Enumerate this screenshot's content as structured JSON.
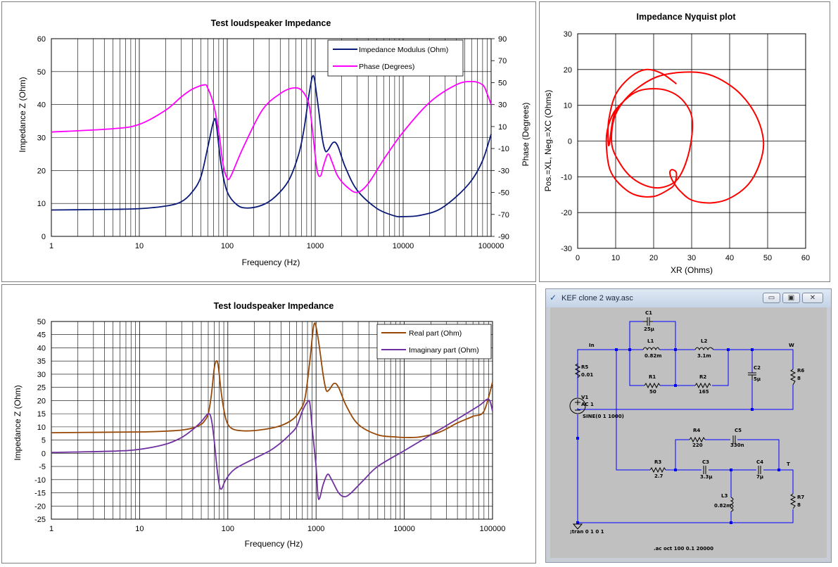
{
  "colors": {
    "navy": "#0a1a78",
    "magenta": "#ff00ff",
    "brown": "#974806",
    "purple": "#7030a0",
    "red": "#ff0000",
    "wire": "#0000ff"
  },
  "chart_data": [
    {
      "type": "line",
      "title": "Test loudspeaker Impedance",
      "xlabel": "Frequency (Hz)",
      "ylabel": "Impedance Z (Ohm)",
      "y2label": "Phase (Degrees)",
      "xscale": "log",
      "xlim": [
        1,
        100000
      ],
      "ylim": [
        0,
        60
      ],
      "y2lim": [
        -90,
        90
      ],
      "xticks": [
        "1",
        "10",
        "100",
        "1000",
        "10000",
        "100000"
      ],
      "yticks": [
        "0",
        "10",
        "20",
        "30",
        "40",
        "50",
        "60"
      ],
      "y2ticks": [
        "-90",
        "-70",
        "-50",
        "-30",
        "-10",
        "10",
        "30",
        "50",
        "70",
        "90"
      ],
      "legend_position": "top-right",
      "series": [
        {
          "name": "Impedance Modulus (Ohm)",
          "axis": "left",
          "color": "#0a1a78",
          "points": [
            [
              1,
              8
            ],
            [
              5,
              8.2
            ],
            [
              10,
              8.4
            ],
            [
              20,
              9.2
            ],
            [
              30,
              10.5
            ],
            [
              40,
              13.5
            ],
            [
              50,
              18
            ],
            [
              60,
              27
            ],
            [
              70,
              35
            ],
            [
              75,
              34
            ],
            [
              85,
              22
            ],
            [
              100,
              13.5
            ],
            [
              130,
              9.5
            ],
            [
              170,
              8.6
            ],
            [
              250,
              9.5
            ],
            [
              350,
              12
            ],
            [
              500,
              17
            ],
            [
              650,
              25
            ],
            [
              750,
              33
            ],
            [
              850,
              43
            ],
            [
              950,
              48.8
            ],
            [
              1050,
              42
            ],
            [
              1200,
              30
            ],
            [
              1300,
              26
            ],
            [
              1400,
              26.2
            ],
            [
              1600,
              28.5
            ],
            [
              1800,
              27.5
            ],
            [
              2200,
              21
            ],
            [
              3000,
              14
            ],
            [
              5000,
              8.5
            ],
            [
              8000,
              6.2
            ],
            [
              10000,
              6
            ],
            [
              15000,
              6.3
            ],
            [
              25000,
              8
            ],
            [
              40000,
              12
            ],
            [
              60000,
              17
            ],
            [
              80000,
              23
            ],
            [
              100000,
              31
            ]
          ]
        },
        {
          "name": "Phase (Degrees)",
          "axis": "right",
          "color": "#ff00ff",
          "points": [
            [
              1,
              5
            ],
            [
              5,
              8
            ],
            [
              10,
              12
            ],
            [
              20,
              25
            ],
            [
              30,
              37
            ],
            [
              40,
              44
            ],
            [
              55,
              48
            ],
            [
              60,
              45
            ],
            [
              70,
              30
            ],
            [
              80,
              5
            ],
            [
              90,
              -25
            ],
            [
              100,
              -37
            ],
            [
              110,
              -35
            ],
            [
              150,
              -10
            ],
            [
              250,
              25
            ],
            [
              400,
              40
            ],
            [
              550,
              45
            ],
            [
              700,
              43
            ],
            [
              850,
              30
            ],
            [
              950,
              0
            ],
            [
              1050,
              -30
            ],
            [
              1150,
              -35
            ],
            [
              1250,
              -25
            ],
            [
              1400,
              -15
            ],
            [
              1550,
              -22
            ],
            [
              1800,
              -35
            ],
            [
              2300,
              -45
            ],
            [
              3000,
              -50
            ],
            [
              4000,
              -42
            ],
            [
              6000,
              -20
            ],
            [
              10000,
              5
            ],
            [
              20000,
              32
            ],
            [
              40000,
              48
            ],
            [
              60000,
              51
            ],
            [
              80000,
              48
            ],
            [
              90000,
              40
            ],
            [
              100000,
              30
            ]
          ]
        }
      ]
    },
    {
      "type": "scatter",
      "title": "Impedance Nyquist plot",
      "xlabel": "XR (Ohms)",
      "ylabel": "Pos.=XL, Neg.=XC (Ohms)",
      "xlim": [
        0,
        60
      ],
      "ylim": [
        -30,
        30
      ],
      "xticks": [
        "0",
        "10",
        "20",
        "30",
        "40",
        "50",
        "60"
      ],
      "yticks": [
        "-30",
        "-20",
        "-10",
        "0",
        "10",
        "20",
        "30"
      ],
      "series": [
        {
          "color": "#ff0000",
          "points": [
            [
              26,
              16
            ],
            [
              22,
              19
            ],
            [
              18,
              20
            ],
            [
              14,
              18
            ],
            [
              10,
              13
            ],
            [
              8.2,
              6
            ],
            [
              8,
              1
            ],
            [
              8.3,
              -1
            ],
            [
              9.5,
              7
            ],
            [
              12,
              11
            ],
            [
              16,
              14
            ],
            [
              21,
              14.6
            ],
            [
              25,
              13.5
            ],
            [
              28,
              11
            ],
            [
              30,
              7
            ],
            [
              30,
              1
            ],
            [
              28.5,
              -6
            ],
            [
              26,
              -11
            ],
            [
              22,
              -13
            ],
            [
              18,
              -12.5
            ],
            [
              14,
              -10
            ],
            [
              11,
              -6
            ],
            [
              9,
              -1
            ],
            [
              9.5,
              6
            ],
            [
              12,
              11
            ],
            [
              16,
              15
            ],
            [
              21,
              18
            ],
            [
              27,
              19.2
            ],
            [
              33,
              19
            ],
            [
              38,
              17
            ],
            [
              43,
              13
            ],
            [
              47,
              7
            ],
            [
              48.9,
              0
            ],
            [
              48,
              -6
            ],
            [
              45,
              -12
            ],
            [
              40,
              -16
            ],
            [
              35,
              -17.3
            ],
            [
              30,
              -16.5
            ],
            [
              27,
              -14
            ],
            [
              25.5,
              -12
            ],
            [
              24.5,
              -10
            ],
            [
              24.3,
              -8.5
            ],
            [
              25,
              -8
            ],
            [
              26,
              -9
            ],
            [
              25.5,
              -12
            ],
            [
              24,
              -13.5
            ],
            [
              20,
              -15.5
            ],
            [
              15,
              -15
            ],
            [
              11,
              -12
            ],
            [
              8.5,
              -8
            ],
            [
              7.6,
              -2
            ],
            [
              7.8,
              3
            ],
            [
              9.5,
              8
            ],
            [
              12,
              11
            ]
          ]
        }
      ]
    },
    {
      "type": "line",
      "title": "Test loudspeaker Impedance",
      "xlabel": "Frequency (Hz)",
      "ylabel": "Impedance Z (Ohm)",
      "xscale": "log",
      "xlim": [
        1,
        100000
      ],
      "ylim": [
        -25,
        50
      ],
      "xticks": [
        "1",
        "10",
        "100",
        "1000",
        "10000",
        "100000"
      ],
      "yticks": [
        "-25",
        "-20",
        "-15",
        "-10",
        "-5",
        "0",
        "5",
        "10",
        "15",
        "20",
        "25",
        "30",
        "35",
        "40",
        "45",
        "50"
      ],
      "legend_position": "top-right",
      "series": [
        {
          "name": "Real part (Ohm)",
          "color": "#974806",
          "points": [
            [
              1,
              7.8
            ],
            [
              10,
              8.1
            ],
            [
              20,
              8.4
            ],
            [
              30,
              8.8
            ],
            [
              40,
              9.6
            ],
            [
              50,
              11
            ],
            [
              55,
              12.5
            ],
            [
              60,
              15
            ],
            [
              65,
              22
            ],
            [
              70,
              32
            ],
            [
              74,
              35
            ],
            [
              78,
              33
            ],
            [
              85,
              22
            ],
            [
              95,
              13
            ],
            [
              110,
              9.5
            ],
            [
              150,
              8.5
            ],
            [
              250,
              9
            ],
            [
              400,
              10.5
            ],
            [
              550,
              13
            ],
            [
              650,
              16
            ],
            [
              750,
              21
            ],
            [
              850,
              35
            ],
            [
              950,
              49
            ],
            [
              1050,
              44
            ],
            [
              1200,
              30
            ],
            [
              1300,
              24
            ],
            [
              1400,
              24
            ],
            [
              1600,
              26.5
            ],
            [
              1800,
              25
            ],
            [
              2200,
              18
            ],
            [
              3000,
              11
            ],
            [
              5000,
              7
            ],
            [
              8000,
              6.2
            ],
            [
              10000,
              6
            ],
            [
              15000,
              6.2
            ],
            [
              25000,
              8
            ],
            [
              40000,
              11.5
            ],
            [
              60000,
              14
            ],
            [
              80000,
              16
            ],
            [
              100000,
              27
            ]
          ]
        },
        {
          "name": "Imaginary part (Ohm)",
          "color": "#7030a0",
          "points": [
            [
              1,
              0.3
            ],
            [
              5,
              0.8
            ],
            [
              10,
              1.5
            ],
            [
              20,
              3.5
            ],
            [
              30,
              6
            ],
            [
              40,
              9
            ],
            [
              50,
              12
            ],
            [
              60,
              15
            ],
            [
              65,
              13
            ],
            [
              70,
              5
            ],
            [
              75,
              -5
            ],
            [
              80,
              -12
            ],
            [
              85,
              -13.5
            ],
            [
              95,
              -10
            ],
            [
              120,
              -6
            ],
            [
              200,
              -2
            ],
            [
              300,
              1
            ],
            [
              400,
              4
            ],
            [
              500,
              7
            ],
            [
              600,
              10
            ],
            [
              700,
              16
            ],
            [
              800,
              19.5
            ],
            [
              850,
              19
            ],
            [
              900,
              10
            ],
            [
              1000,
              -5
            ],
            [
              1050,
              -16
            ],
            [
              1100,
              -17
            ],
            [
              1200,
              -12
            ],
            [
              1350,
              -8
            ],
            [
              1500,
              -10
            ],
            [
              1800,
              -15
            ],
            [
              2100,
              -16.5
            ],
            [
              2500,
              -15
            ],
            [
              3500,
              -10
            ],
            [
              5000,
              -5
            ],
            [
              10000,
              1
            ],
            [
              20000,
              7
            ],
            [
              40000,
              13
            ],
            [
              70000,
              18
            ],
            [
              90000,
              20.5
            ],
            [
              100000,
              16
            ]
          ]
        }
      ]
    }
  ],
  "schematic": {
    "window_title": "KEF clone 2 way.asc",
    "window_icon": "ltspice-icon",
    "labels": {
      "c1": "C1",
      "c1v": "25μ",
      "l1": "L1",
      "l1v": "0.82m",
      "l2": "L2",
      "l2v": "3.1m",
      "in": "In",
      "w": "W",
      "t": "T",
      "r5": "R5",
      "r5v": "0.01",
      "r1": "R1",
      "r1v": "50",
      "r2": "R2",
      "r2v": "165",
      "c2": "C2",
      "c2v": "5μ",
      "r6": "R6",
      "r6v": "8",
      "v1": "V1",
      "v1ac": "AC 1",
      "v1sine": "SINE(0 1 1000)",
      "r4": "R4",
      "r4v": "220",
      "c5": "C5",
      "c5v": "330n",
      "r3": "R3",
      "r3v": "2.7",
      "c3": "C3",
      "c3v": "3.3μ",
      "c4": "C4",
      "c4v": "7μ",
      "l3": "L3",
      "l3v": "0.82m",
      "r7": "R7",
      "r7v": "8",
      "tran": ";tran 0 1 0 1",
      "ac": ".ac oct 100 0.1 20000"
    }
  }
}
